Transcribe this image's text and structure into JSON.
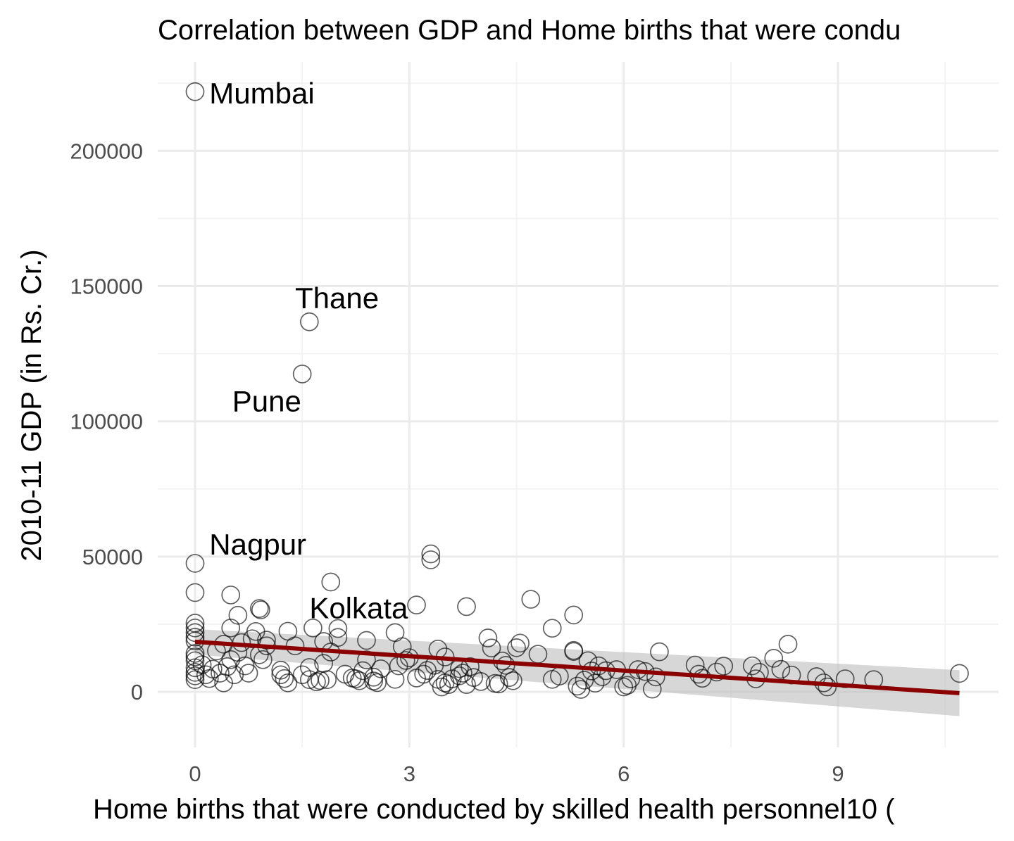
{
  "chart_data": {
    "type": "scatter",
    "title": "Correlation between GDP and Home births that were condu",
    "xlabel": "Home births that were conducted by skilled health personnel10 (",
    "ylabel": "2010-11 GDP (in Rs. Cr.)",
    "xlim": [
      -0.55,
      11.3
    ],
    "ylim": [
      -20000,
      234000
    ],
    "x_ticks": [
      0,
      3,
      6,
      9
    ],
    "x_tick_labels": [
      "0",
      "3",
      "6",
      "9"
    ],
    "y_ticks": [
      0,
      50000,
      100000,
      150000,
      200000
    ],
    "y_tick_labels": [
      "0",
      "50000",
      "100000",
      "150000",
      "200000"
    ],
    "grid": true,
    "legend": "none",
    "colors": {
      "points": "#000000",
      "trend_line": "#8b0000",
      "confidence_band": "#bebebe",
      "grid": "#ebebeb",
      "tick_text": "#4d4d4d"
    },
    "labels": [
      {
        "text": "Mumbai",
        "x": 0.2,
        "y": 221500
      },
      {
        "text": "Thane",
        "x": 1.4,
        "y": 145700
      },
      {
        "text": "Pune",
        "x": 0.52,
        "y": 107600
      },
      {
        "text": "Nagpur",
        "x": 0.2,
        "y": 54700
      },
      {
        "text": "Kolkata",
        "x": 1.6,
        "y": 31100
      }
    ],
    "points": [
      [
        0.0,
        221900
      ],
      [
        1.6,
        136800
      ],
      [
        1.5,
        117500
      ],
      [
        0.0,
        47500
      ],
      [
        0.0,
        36700
      ],
      [
        0.0,
        25400
      ],
      [
        0.0,
        23600
      ],
      [
        0.0,
        21900
      ],
      [
        0.0,
        20200
      ],
      [
        0.0,
        18800
      ],
      [
        0.0,
        14200
      ],
      [
        0.0,
        12900
      ],
      [
        0.0,
        11500
      ],
      [
        0.0,
        8900
      ],
      [
        0.0,
        7200
      ],
      [
        0.0,
        5900
      ],
      [
        0.0,
        4500
      ],
      [
        0.1,
        10000
      ],
      [
        0.15,
        6300
      ],
      [
        0.2,
        4900
      ],
      [
        0.25,
        8400
      ],
      [
        0.3,
        15100
      ],
      [
        0.35,
        6900
      ],
      [
        0.4,
        3300
      ],
      [
        0.4,
        17600
      ],
      [
        0.45,
        9300
      ],
      [
        0.5,
        35800
      ],
      [
        0.5,
        23600
      ],
      [
        0.5,
        11900
      ],
      [
        0.55,
        6300
      ],
      [
        0.6,
        14600
      ],
      [
        0.6,
        28300
      ],
      [
        0.65,
        18200
      ],
      [
        0.7,
        9600
      ],
      [
        0.75,
        6900
      ],
      [
        0.8,
        19600
      ],
      [
        0.85,
        22300
      ],
      [
        0.9,
        13700
      ],
      [
        0.9,
        30800
      ],
      [
        0.92,
        30300
      ],
      [
        0.95,
        11900
      ],
      [
        1.0,
        17000
      ],
      [
        1.0,
        19100
      ],
      [
        1.2,
        8000
      ],
      [
        1.2,
        6300
      ],
      [
        1.25,
        4900
      ],
      [
        1.3,
        3300
      ],
      [
        1.3,
        22400
      ],
      [
        1.4,
        17000
      ],
      [
        1.5,
        6300
      ],
      [
        1.6,
        9000
      ],
      [
        1.6,
        4500
      ],
      [
        1.65,
        23600
      ],
      [
        1.7,
        3700
      ],
      [
        1.75,
        4200
      ],
      [
        1.8,
        18600
      ],
      [
        1.8,
        10500
      ],
      [
        1.85,
        4500
      ],
      [
        1.9,
        14700
      ],
      [
        1.9,
        40600
      ],
      [
        2.0,
        23400
      ],
      [
        2.0,
        20100
      ],
      [
        2.1,
        6500
      ],
      [
        2.2,
        5100
      ],
      [
        2.25,
        4800
      ],
      [
        2.3,
        4100
      ],
      [
        2.35,
        7800
      ],
      [
        2.4,
        19000
      ],
      [
        2.4,
        11800
      ],
      [
        2.5,
        4000
      ],
      [
        2.5,
        5400
      ],
      [
        2.55,
        3400
      ],
      [
        2.6,
        8500
      ],
      [
        2.8,
        21900
      ],
      [
        2.8,
        4600
      ],
      [
        2.85,
        9600
      ],
      [
        2.9,
        16700
      ],
      [
        2.95,
        11600
      ],
      [
        3.0,
        12600
      ],
      [
        3.1,
        5100
      ],
      [
        3.1,
        32100
      ],
      [
        3.2,
        6500
      ],
      [
        3.25,
        7900
      ],
      [
        3.3,
        51000
      ],
      [
        3.3,
        48800
      ],
      [
        3.35,
        9800
      ],
      [
        3.4,
        15800
      ],
      [
        3.4,
        4600
      ],
      [
        3.45,
        1800
      ],
      [
        3.5,
        3300
      ],
      [
        3.5,
        12900
      ],
      [
        3.55,
        2700
      ],
      [
        3.6,
        4800
      ],
      [
        3.7,
        8600
      ],
      [
        3.7,
        5900
      ],
      [
        3.75,
        6900
      ],
      [
        3.8,
        31500
      ],
      [
        3.8,
        2700
      ],
      [
        3.85,
        9300
      ],
      [
        3.9,
        5300
      ],
      [
        4.0,
        3800
      ],
      [
        4.1,
        19900
      ],
      [
        4.15,
        16200
      ],
      [
        4.2,
        3100
      ],
      [
        4.25,
        2900
      ],
      [
        4.3,
        11400
      ],
      [
        4.35,
        9800
      ],
      [
        4.4,
        5300
      ],
      [
        4.45,
        4100
      ],
      [
        4.5,
        16300
      ],
      [
        4.55,
        18000
      ],
      [
        4.7,
        34200
      ],
      [
        4.8,
        13900
      ],
      [
        5.0,
        23500
      ],
      [
        5.0,
        4600
      ],
      [
        5.1,
        5800
      ],
      [
        5.3,
        28400
      ],
      [
        5.3,
        15300
      ],
      [
        5.3,
        14900
      ],
      [
        5.35,
        2100
      ],
      [
        5.4,
        900
      ],
      [
        5.45,
        4300
      ],
      [
        5.5,
        11500
      ],
      [
        5.55,
        7700
      ],
      [
        5.6,
        3200
      ],
      [
        5.65,
        9600
      ],
      [
        5.7,
        5600
      ],
      [
        5.75,
        7800
      ],
      [
        5.9,
        8200
      ],
      [
        6.0,
        1800
      ],
      [
        6.05,
        2400
      ],
      [
        6.1,
        4800
      ],
      [
        6.2,
        8200
      ],
      [
        6.3,
        7500
      ],
      [
        6.4,
        1000
      ],
      [
        6.45,
        5500
      ],
      [
        6.5,
        14800
      ],
      [
        7.0,
        9900
      ],
      [
        7.05,
        6500
      ],
      [
        7.1,
        5000
      ],
      [
        7.3,
        7300
      ],
      [
        7.4,
        9500
      ],
      [
        7.8,
        9600
      ],
      [
        7.85,
        4800
      ],
      [
        7.9,
        7200
      ],
      [
        8.1,
        12400
      ],
      [
        8.2,
        8300
      ],
      [
        8.3,
        17600
      ],
      [
        8.35,
        6200
      ],
      [
        8.7,
        5600
      ],
      [
        8.8,
        3300
      ],
      [
        8.85,
        1800
      ],
      [
        9.1,
        4800
      ],
      [
        9.5,
        4500
      ],
      [
        10.7,
        6800
      ]
    ],
    "trend": {
      "type": "linear",
      "x_range": [
        0,
        10.7
      ],
      "y_start": 18500,
      "y_end": -500,
      "ci_lower_start": 13800,
      "ci_upper_start": 23200,
      "ci_lower_end": -9000,
      "ci_upper_end": 8000
    }
  }
}
